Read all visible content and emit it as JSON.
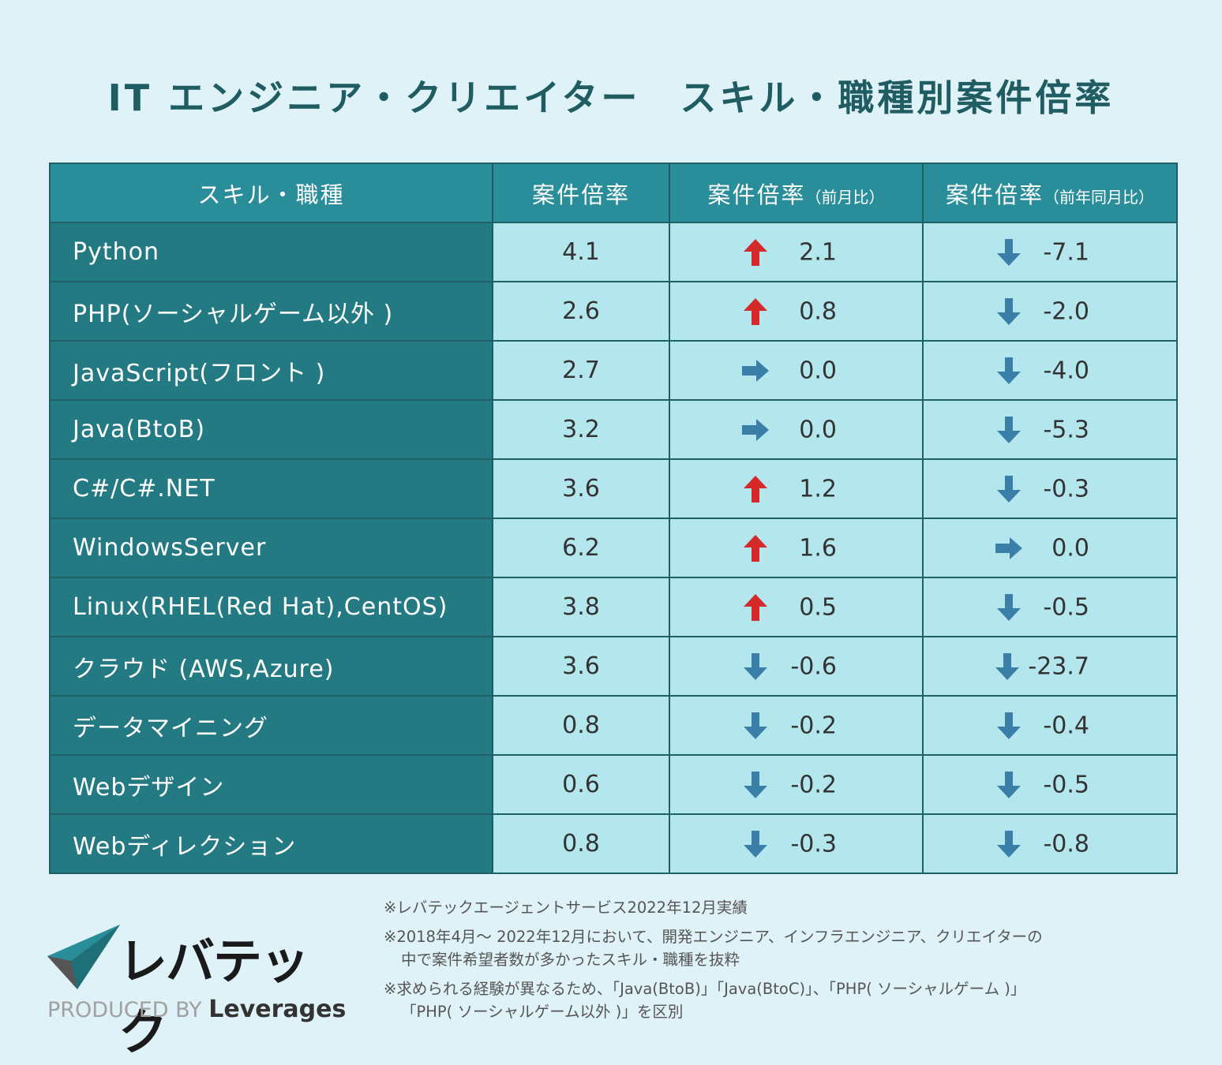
{
  "title": "IT エンジニア・クリエイター　スキル・職種別案件倍率",
  "chart_data": {
    "type": "table",
    "columns": [
      {
        "main": "スキル・職種",
        "sub": ""
      },
      {
        "main": "案件倍率",
        "sub": ""
      },
      {
        "main": "案件倍率",
        "sub": "（前月比）"
      },
      {
        "main": "案件倍率",
        "sub": "（前年同月比）"
      }
    ],
    "rows": [
      {
        "skill": "Python",
        "ratio": "4.1",
        "mom": "2.1",
        "mom_dir": "up",
        "yoy": "-7.1",
        "yoy_dir": "down"
      },
      {
        "skill": "PHP(ソーシャルゲーム以外 )",
        "ratio": "2.6",
        "mom": "0.8",
        "mom_dir": "up",
        "yoy": "-2.0",
        "yoy_dir": "down"
      },
      {
        "skill": "JavaScript(フロント )",
        "ratio": "2.7",
        "mom": "0.0",
        "mom_dir": "flat",
        "yoy": "-4.0",
        "yoy_dir": "down"
      },
      {
        "skill": "Java(BtoB)",
        "ratio": "3.2",
        "mom": "0.0",
        "mom_dir": "flat",
        "yoy": "-5.3",
        "yoy_dir": "down"
      },
      {
        "skill": "C#/C#.NET",
        "ratio": "3.6",
        "mom": "1.2",
        "mom_dir": "up",
        "yoy": "-0.3",
        "yoy_dir": "down"
      },
      {
        "skill": "WindowsServer",
        "ratio": "6.2",
        "mom": "1.6",
        "mom_dir": "up",
        "yoy": "0.0",
        "yoy_dir": "flat"
      },
      {
        "skill": "Linux(RHEL(Red Hat),CentOS)",
        "ratio": "3.8",
        "mom": "0.5",
        "mom_dir": "up",
        "yoy": "-0.5",
        "yoy_dir": "down"
      },
      {
        "skill": "クラウド (AWS,Azure)",
        "ratio": "3.6",
        "mom": "-0.6",
        "mom_dir": "down",
        "yoy": "-23.7",
        "yoy_dir": "down"
      },
      {
        "skill": "データマイニング",
        "ratio": "0.8",
        "mom": "-0.2",
        "mom_dir": "down",
        "yoy": "-0.4",
        "yoy_dir": "down"
      },
      {
        "skill": "Webデザイン",
        "ratio": "0.6",
        "mom": "-0.2",
        "mom_dir": "down",
        "yoy": "-0.5",
        "yoy_dir": "down"
      },
      {
        "skill": "Webディレクション",
        "ratio": "0.8",
        "mom": "-0.3",
        "mom_dir": "down",
        "yoy": "-0.8",
        "yoy_dir": "down"
      }
    ]
  },
  "notes": [
    {
      "line1": "※レバテックエージェントサービス2022年12月実績",
      "line2": ""
    },
    {
      "line1": "※2018年4月～ 2022年12月において、開発エンジニア、インフラエンジニア、クリエイターの",
      "line2": "中で案件希望者数が多かったスキル・職種を抜粋"
    },
    {
      "line1": "※求められる経験が異なるため、「Java(BtoB)」「Java(BtoC)」、「PHP( ソーシャルゲーム )」",
      "line2": "「PHP( ソーシャルゲーム以外 )」を区別"
    }
  ],
  "logo": {
    "name": "レバテック",
    "produced_by": "PRODUCED BY",
    "brand": "Leverages"
  },
  "colors": {
    "background": "#dff2f7",
    "title": "#1f5d63",
    "header": "#2a8d9a",
    "skill_cell": "#247a82",
    "value_cell": "#b4e6ed",
    "arrow_up": "#d42a2a",
    "arrow_down": "#3a7fa8",
    "arrow_flat": "#3a7fa8"
  }
}
